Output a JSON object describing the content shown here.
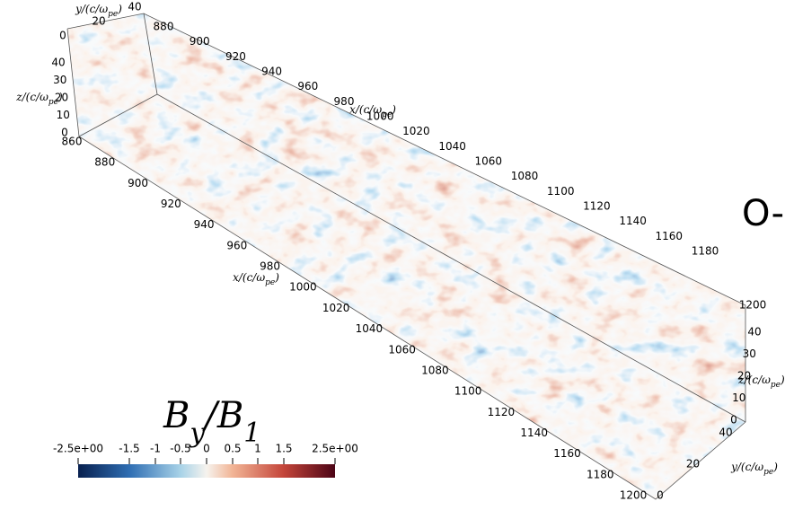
{
  "colorbar": {
    "title": [
      "B",
      "y",
      "/B",
      "1"
    ],
    "ticks": [
      "-2.5e+00",
      "-1.5",
      "-1",
      "-0.5",
      "0",
      "0.5",
      "1",
      "1.5",
      "2.5e+00"
    ]
  },
  "axes": {
    "x_top": {
      "title": [
        "x/(c/ω",
        "pe",
        ")"
      ],
      "ticks": [
        "880",
        "900",
        "920",
        "940",
        "960",
        "980",
        "1000",
        "1020",
        "1040",
        "1060",
        "1080",
        "1100",
        "1120",
        "1140",
        "1160",
        "1180"
      ]
    },
    "x_far_end": "1200",
    "x_bottom": {
      "title": [
        "x/(c/ω",
        "pe",
        ")"
      ],
      "ticks": [
        "860",
        "880",
        "900",
        "920",
        "940",
        "960",
        "980",
        "1000",
        "1020",
        "1040",
        "1060",
        "1080",
        "1100",
        "1120",
        "1140",
        "1160",
        "1180",
        "1200"
      ]
    },
    "z_left": {
      "title": [
        "z/(c/ω",
        "pe",
        ")"
      ],
      "ticks": [
        "0",
        "10",
        "20",
        "30",
        "40"
      ]
    },
    "y_top": {
      "title": [
        "y/(c/ω",
        "pe",
        ")"
      ],
      "ticks": [
        "0",
        "20",
        "40"
      ]
    },
    "z_right": {
      "title": [
        "z/(c/ω",
        "pe",
        ")"
      ],
      "ticks": [
        "0",
        "10",
        "20",
        "30",
        "40"
      ]
    },
    "y_right": {
      "title": [
        "y/(c/ω",
        "pe",
        ")"
      ],
      "ticks": [
        "0",
        "20",
        "40"
      ]
    }
  },
  "fragment": "O-"
}
